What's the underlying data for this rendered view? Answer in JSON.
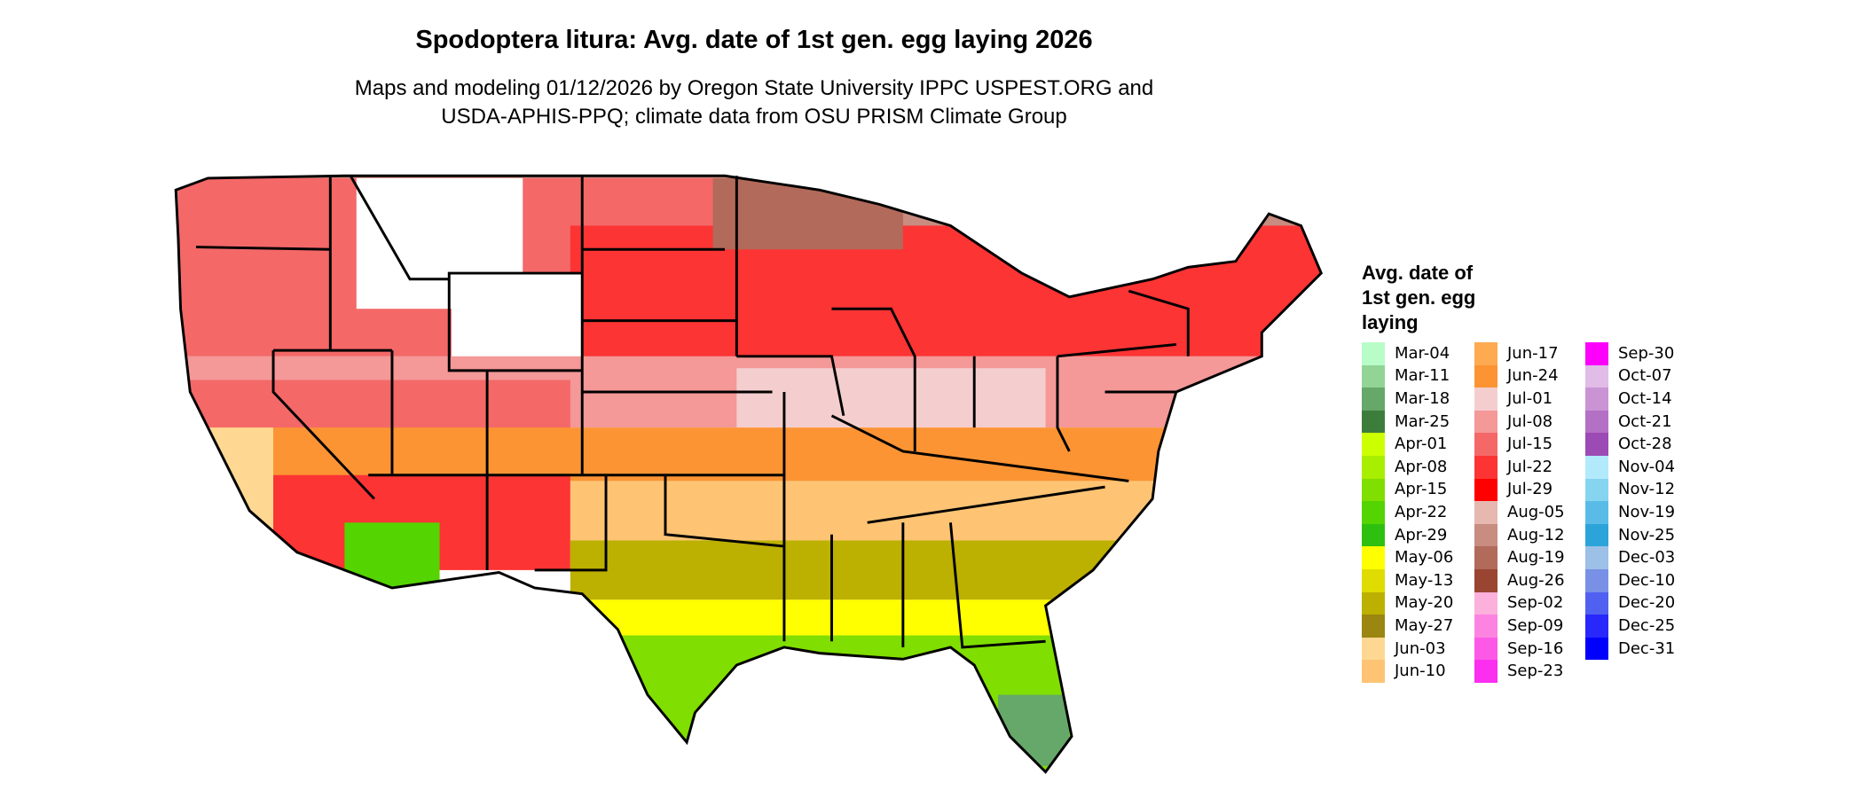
{
  "title": "Spodoptera litura: Avg. date of 1st gen. egg laying 2026",
  "subtitle_line1": "Maps and modeling 01/12/2026 by Oregon State University IPPC USPEST.ORG and",
  "subtitle_line2": "USDA-APHIS-PPQ; climate data from OSU PRISM Climate Group",
  "legend": {
    "title": "Avg. date of 1st gen. egg laying",
    "items": [
      {
        "label": "Mar-04",
        "color": "#b8fcc8"
      },
      {
        "label": "Mar-11",
        "color": "#92d496"
      },
      {
        "label": "Mar-18",
        "color": "#66a86a"
      },
      {
        "label": "Mar-25",
        "color": "#3c7d3c"
      },
      {
        "label": "Apr-01",
        "color": "#ccff00"
      },
      {
        "label": "Apr-08",
        "color": "#a8ee00"
      },
      {
        "label": "Apr-15",
        "color": "#80de00"
      },
      {
        "label": "Apr-22",
        "color": "#54d400"
      },
      {
        "label": "Apr-29",
        "color": "#2ec010"
      },
      {
        "label": "May-06",
        "color": "#ffff00"
      },
      {
        "label": "May-13",
        "color": "#dedc00"
      },
      {
        "label": "May-20",
        "color": "#bcb000"
      },
      {
        "label": "May-27",
        "color": "#9a8610"
      },
      {
        "label": "Jun-03",
        "color": "#fed892"
      },
      {
        "label": "Jun-10",
        "color": "#fec474"
      },
      {
        "label": "Jun-17",
        "color": "#fdaa50"
      },
      {
        "label": "Jun-24",
        "color": "#fc9434"
      },
      {
        "label": "Jul-01",
        "color": "#f4cece"
      },
      {
        "label": "Jul-08",
        "color": "#f49898"
      },
      {
        "label": "Jul-15",
        "color": "#f46868"
      },
      {
        "label": "Jul-22",
        "color": "#fc3434"
      },
      {
        "label": "Jul-29",
        "color": "#fe0000"
      },
      {
        "label": "Aug-05",
        "color": "#e6b8b0"
      },
      {
        "label": "Aug-12",
        "color": "#c88c80"
      },
      {
        "label": "Aug-19",
        "color": "#b26a5a"
      },
      {
        "label": "Aug-26",
        "color": "#9a4432"
      },
      {
        "label": "Sep-02",
        "color": "#fcb0dc"
      },
      {
        "label": "Sep-09",
        "color": "#fc84e0"
      },
      {
        "label": "Sep-16",
        "color": "#fc5ae6"
      },
      {
        "label": "Sep-23",
        "color": "#fc2ef0"
      },
      {
        "label": "Sep-30",
        "color": "#fc00fc"
      },
      {
        "label": "Oct-07",
        "color": "#e0bce6"
      },
      {
        "label": "Oct-14",
        "color": "#ca94d4"
      },
      {
        "label": "Oct-21",
        "color": "#b470c4"
      },
      {
        "label": "Oct-28",
        "color": "#9c4ab4"
      },
      {
        "label": "Nov-04",
        "color": "#b2eafc"
      },
      {
        "label": "Nov-12",
        "color": "#86d4f0"
      },
      {
        "label": "Nov-19",
        "color": "#5abce6"
      },
      {
        "label": "Nov-25",
        "color": "#2ca4da"
      },
      {
        "label": "Dec-03",
        "color": "#9cc0e6"
      },
      {
        "label": "Dec-10",
        "color": "#7890e6"
      },
      {
        "label": "Dec-20",
        "color": "#5060f0"
      },
      {
        "label": "Dec-25",
        "color": "#2828fc"
      },
      {
        "label": "Dec-31",
        "color": "#0000fc"
      }
    ]
  }
}
